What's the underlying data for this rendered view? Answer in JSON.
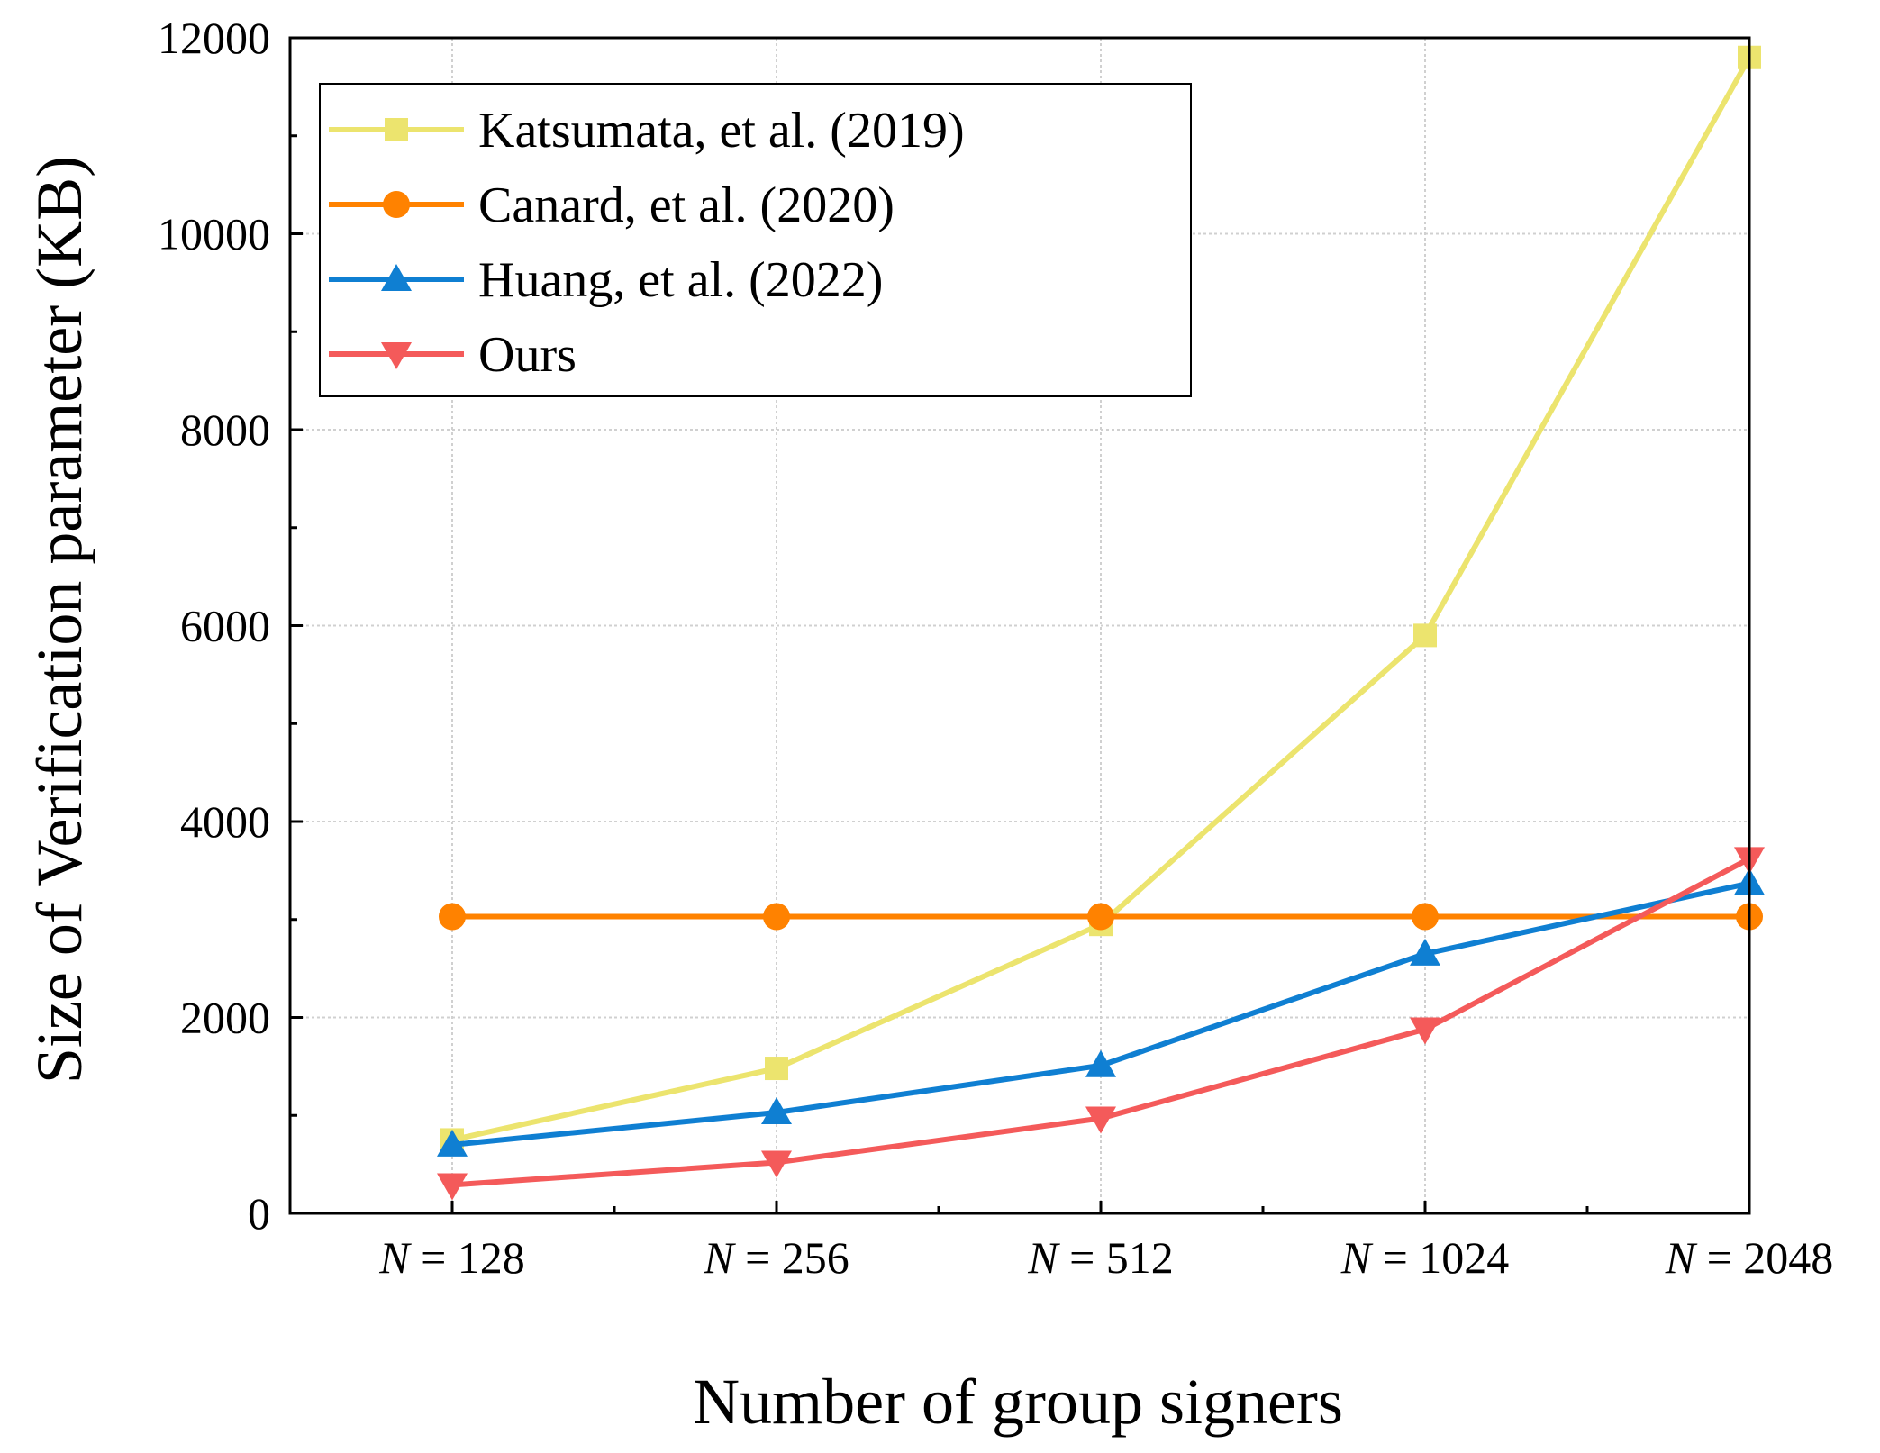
{
  "chart_data": {
    "type": "line",
    "xlabel": "Number of group signers",
    "ylabel": "Size of Verification parameter (KB)",
    "categories": [
      {
        "var": "N",
        "op": " = ",
        "num": "128"
      },
      {
        "var": "N",
        "op": " = ",
        "num": "256"
      },
      {
        "var": "N",
        "op": " = ",
        "num": "512"
      },
      {
        "var": "N",
        "op": " = ",
        "num": "1024"
      },
      {
        "var": "N",
        "op": " = ",
        "num": "2048"
      }
    ],
    "ylim": [
      0,
      12000
    ],
    "yticks": [
      "0",
      "2000",
      "4000",
      "6000",
      "8000",
      "10000",
      "12000"
    ],
    "grid": true,
    "legend_position": "top-left",
    "series": [
      {
        "name": "Katsumata, et al. (2019)",
        "values": [
          750,
          1480,
          2950,
          5900,
          11800
        ],
        "color": "#ece46e",
        "marker": "square"
      },
      {
        "name": "Canard, et al. (2020)",
        "values": [
          3030,
          3030,
          3030,
          3030,
          3030
        ],
        "color": "#ff8200",
        "marker": "circle"
      },
      {
        "name": "Huang, et al. (2022)",
        "values": [
          700,
          1030,
          1510,
          2650,
          3370
        ],
        "color": "#0f7fd2",
        "marker": "triangle-up"
      },
      {
        "name": "Ours",
        "values": [
          290,
          520,
          970,
          1880,
          3620
        ],
        "color": "#f45a5a",
        "marker": "triangle-down"
      }
    ]
  }
}
